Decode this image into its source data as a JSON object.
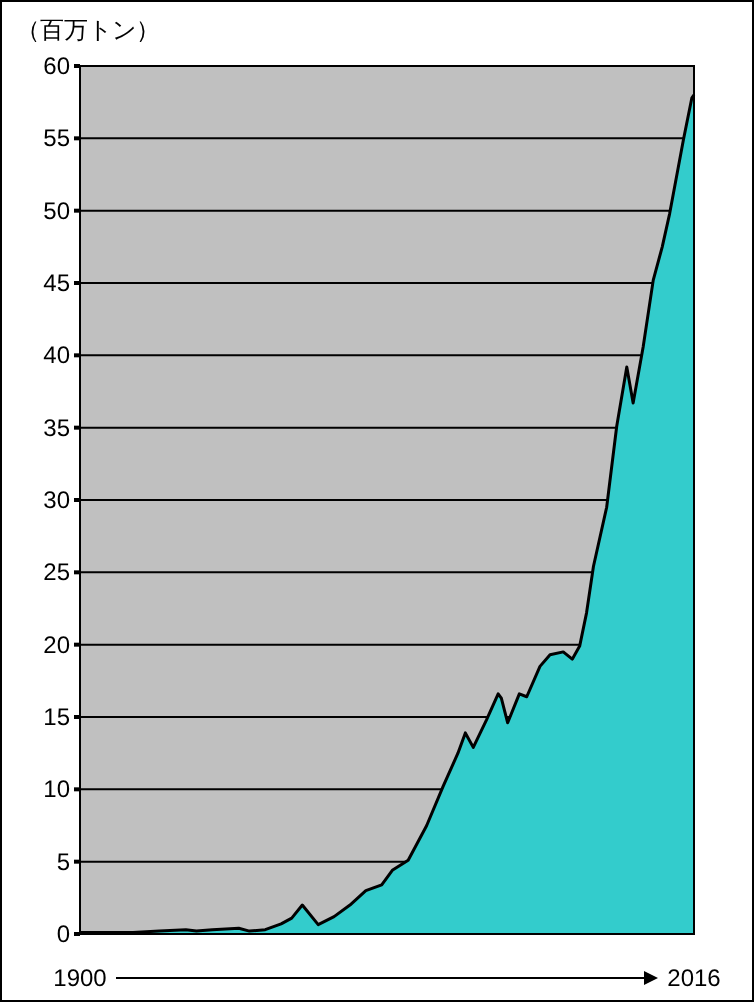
{
  "chart_data": {
    "type": "area",
    "ylabel": "（百万トン）",
    "color": "#33cccc",
    "grid": "y",
    "x": [
      1900,
      1905,
      1910,
      1915,
      1920,
      1922,
      1925,
      1930,
      1932,
      1935,
      1938,
      1940,
      1942,
      1945,
      1948,
      1951,
      1954,
      1957,
      1959,
      1962,
      1965.5,
      1968.6,
      1971.4,
      1972.8,
      1974.3,
      1976.8,
      1979,
      1979.6,
      1980.8,
      1983,
      1984.4,
      1986.9,
      1988.8,
      1991.3,
      1993,
      1994.4,
      1995.7,
      1997,
      1999.5,
      2001.4,
      2003.3,
      2004.5,
      2006.4,
      2008.3,
      2010,
      2011.4,
      2014,
      2015.6,
      2016
    ],
    "values": [
      0.1,
      0.1,
      0.1,
      0.2,
      0.3,
      0.2,
      0.3,
      0.4,
      0.2,
      0.3,
      0.7,
      1.1,
      2.0,
      0.65,
      1.2,
      2.0,
      3.0,
      3.4,
      4.4,
      5.1,
      7.5,
      10.2,
      12.5,
      13.9,
      12.9,
      14.8,
      16.6,
      16.3,
      14.6,
      16.6,
      16.4,
      18.5,
      19.3,
      19.5,
      19.0,
      19.9,
      22.2,
      25.4,
      29.5,
      35.1,
      39.2,
      36.7,
      40.6,
      45.2,
      47.5,
      49.8,
      54.9,
      57.8,
      58.0
    ],
    "xlim": [
      1900,
      2016
    ],
    "xticks": [
      1900,
      2016
    ],
    "ylim": [
      0,
      60
    ],
    "yticks": [
      0,
      5,
      10,
      15,
      20,
      25,
      30,
      35,
      40,
      45,
      50,
      55,
      60
    ]
  }
}
